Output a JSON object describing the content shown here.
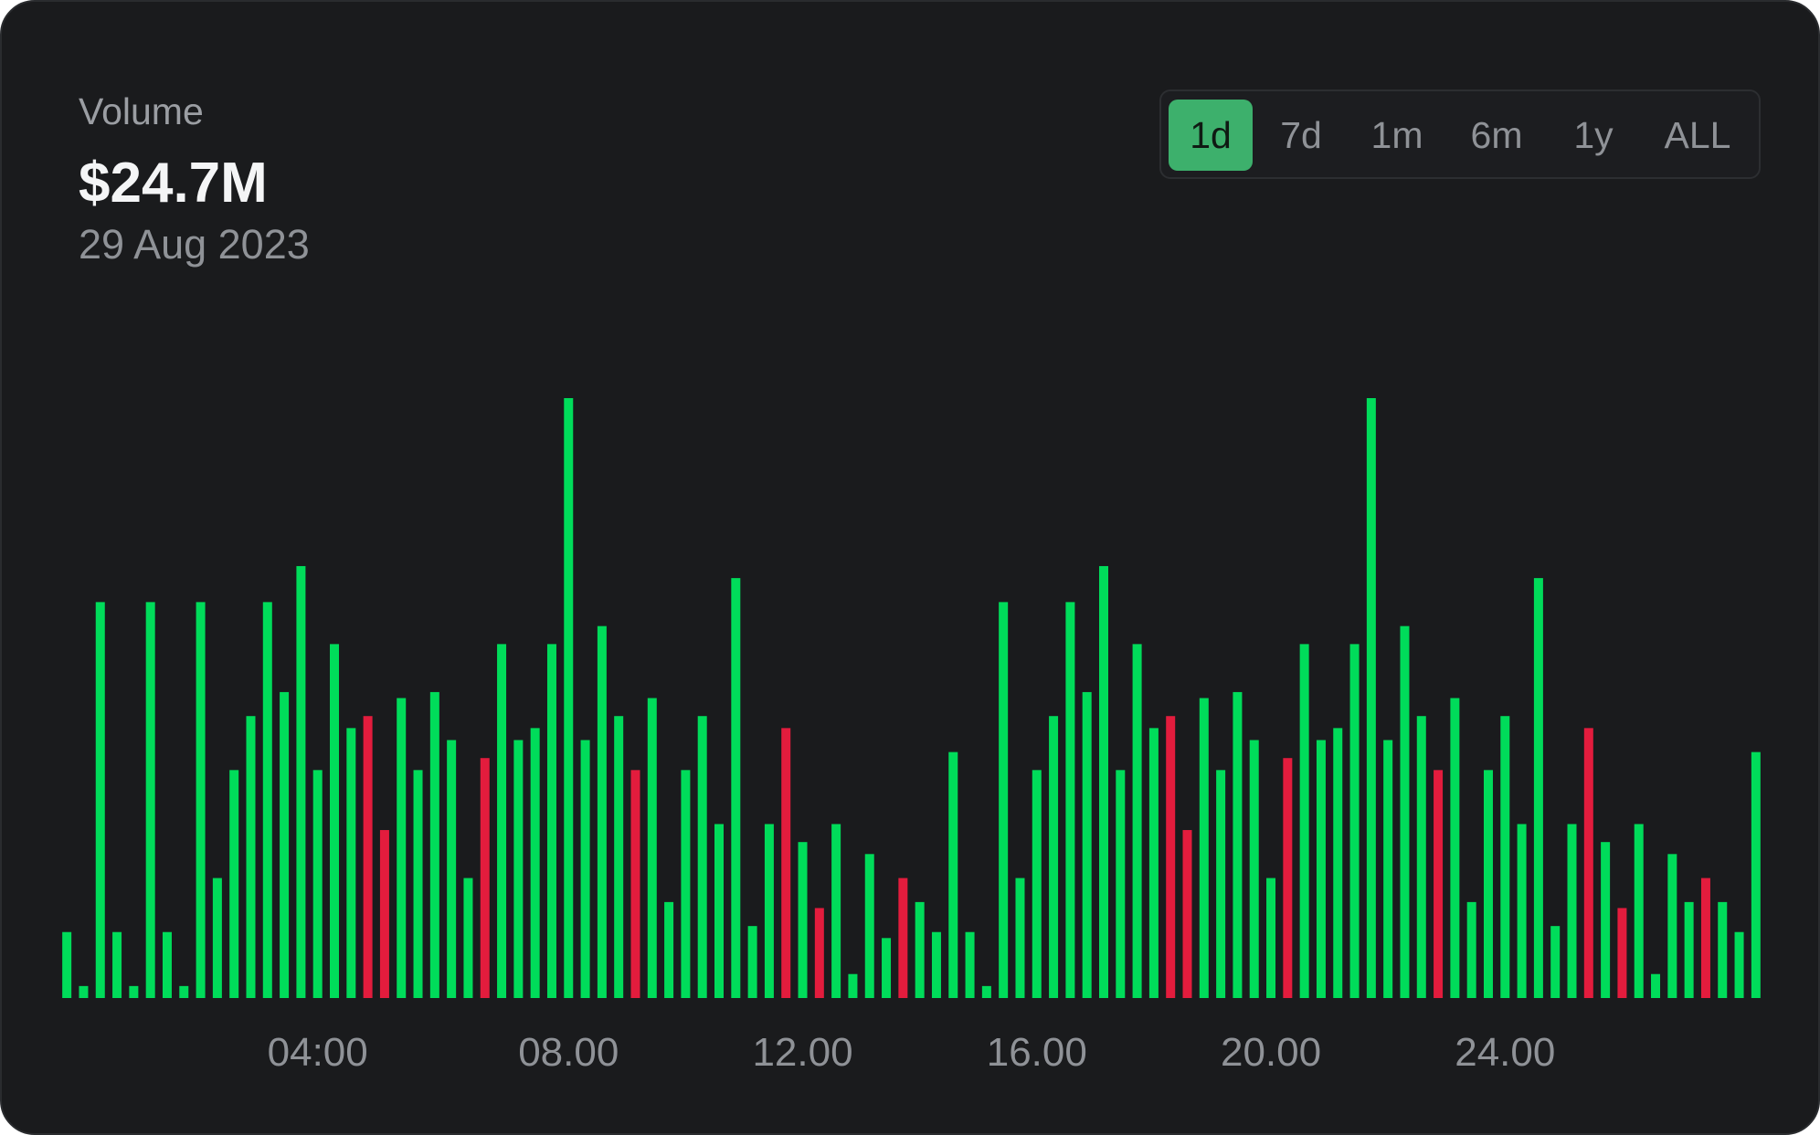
{
  "header": {
    "label": "Volume",
    "value": "$24.7M",
    "date": "29 Aug 2023"
  },
  "ranges": [
    {
      "label": "1d",
      "active": true
    },
    {
      "label": "7d",
      "active": false
    },
    {
      "label": "1m",
      "active": false
    },
    {
      "label": "6m",
      "active": false
    },
    {
      "label": "1y",
      "active": false
    },
    {
      "label": "ALL",
      "active": false
    }
  ],
  "colors": {
    "up": "#00dc5a",
    "down": "#e31c3d",
    "accent": "#3db06c",
    "background": "#1a1b1d"
  },
  "chart_data": {
    "type": "bar",
    "title": "",
    "xlabel": "",
    "ylabel": "",
    "grid": false,
    "legend": "none",
    "ylim": [
      0,
      100
    ],
    "x_tick_labels": [
      "04:00",
      "08.00",
      "12.00",
      "16.00",
      "20.00",
      "24.00"
    ],
    "x_tick_bar_index": [
      15,
      30,
      44,
      58,
      72,
      86
    ],
    "values": [
      11,
      2,
      66,
      11,
      2,
      66,
      11,
      2,
      66,
      20,
      38,
      47,
      66,
      51,
      72,
      38,
      59,
      45,
      47,
      28,
      50,
      38,
      51,
      43,
      20,
      40,
      59,
      43,
      45,
      59,
      100,
      43,
      62,
      47,
      38,
      50,
      16,
      38,
      47,
      29,
      70,
      12,
      29,
      45,
      26,
      15,
      29,
      4,
      24,
      10,
      20,
      16,
      11,
      41,
      11,
      2,
      66,
      20,
      38,
      47,
      66,
      51,
      72,
      38,
      59,
      45,
      47,
      28,
      50,
      38,
      51,
      43,
      20,
      40,
      59,
      43,
      45,
      59,
      100,
      43,
      62,
      47,
      38,
      50,
      16,
      38,
      47,
      29,
      70,
      12,
      29,
      45,
      26,
      15,
      29,
      4,
      24,
      16,
      20,
      16,
      11,
      41
    ],
    "directions": [
      "up",
      "up",
      "up",
      "up",
      "up",
      "up",
      "up",
      "up",
      "up",
      "up",
      "up",
      "up",
      "up",
      "up",
      "up",
      "up",
      "up",
      "up",
      "down",
      "down",
      "up",
      "up",
      "up",
      "up",
      "up",
      "down",
      "up",
      "up",
      "up",
      "up",
      "up",
      "up",
      "up",
      "up",
      "down",
      "up",
      "up",
      "up",
      "up",
      "up",
      "up",
      "up",
      "up",
      "down",
      "up",
      "down",
      "up",
      "up",
      "up",
      "up",
      "down",
      "up",
      "up",
      "up",
      "up",
      "up",
      "up",
      "up",
      "up",
      "up",
      "up",
      "up",
      "up",
      "up",
      "up",
      "up",
      "down",
      "down",
      "up",
      "up",
      "up",
      "up",
      "up",
      "down",
      "up",
      "up",
      "up",
      "up",
      "up",
      "up",
      "up",
      "up",
      "down",
      "up",
      "up",
      "up",
      "up",
      "up",
      "up",
      "up",
      "up",
      "down",
      "up",
      "down",
      "up",
      "up",
      "up",
      "up",
      "down",
      "up",
      "up",
      "up"
    ]
  }
}
